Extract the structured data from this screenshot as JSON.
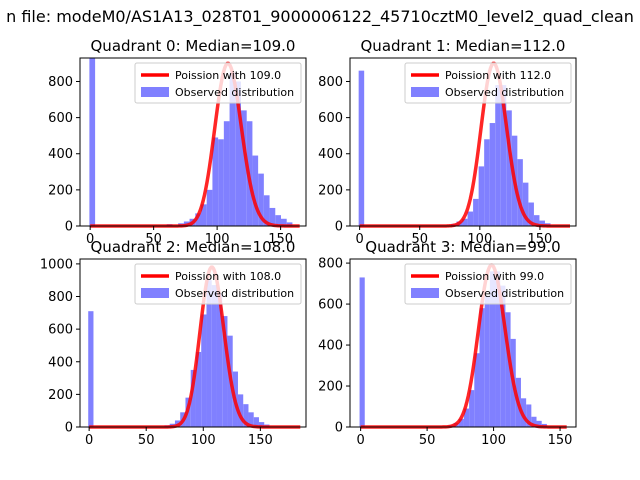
{
  "figure": {
    "title": "n file: modeM0/AS1A13_028T01_9000006122_45710cztM0_level2_quad_clean"
  },
  "colors": {
    "hist": "#8080ff",
    "curve": "#ff0000",
    "axes": "#000000"
  },
  "chart_data": [
    {
      "type": "bar",
      "title": "Quadrant 0: Median=109.0",
      "xlim": [
        -8,
        170
      ],
      "ylim": [
        0,
        930
      ],
      "xticks": [
        0,
        50,
        100,
        150
      ],
      "yticks": [
        0,
        200,
        400,
        600,
        800
      ],
      "legend": {
        "placement": "top-right",
        "entries": [
          "Poission with 109.0",
          "Observed distribution"
        ]
      },
      "series": [
        {
          "name": "Observed distribution",
          "kind": "histogram",
          "bin_width": 4.5,
          "bins": [
            {
              "x": -0.6,
              "y": 930
            },
            {
              "x": 60.3,
              "y": 10
            },
            {
              "x": 69.3,
              "y": 15
            },
            {
              "x": 73.8,
              "y": 25
            },
            {
              "x": 78.3,
              "y": 40
            },
            {
              "x": 82.8,
              "y": 70
            },
            {
              "x": 87.3,
              "y": 120
            },
            {
              "x": 91.8,
              "y": 200
            },
            {
              "x": 96.3,
              "y": 490
            },
            {
              "x": 100.8,
              "y": 480
            },
            {
              "x": 105.3,
              "y": 580
            },
            {
              "x": 109.8,
              "y": 850
            },
            {
              "x": 114.3,
              "y": 800
            },
            {
              "x": 118.8,
              "y": 640
            },
            {
              "x": 123.3,
              "y": 580
            },
            {
              "x": 127.8,
              "y": 390
            },
            {
              "x": 132.3,
              "y": 290
            },
            {
              "x": 136.8,
              "y": 170
            },
            {
              "x": 141.3,
              "y": 100
            },
            {
              "x": 145.8,
              "y": 60
            },
            {
              "x": 150.3,
              "y": 40
            },
            {
              "x": 154.8,
              "y": 20
            }
          ]
        },
        {
          "name": "Poission with 109.0",
          "kind": "poisson",
          "lambda": 109.0,
          "peak": 900,
          "x_range": [
            0,
            165
          ]
        }
      ]
    },
    {
      "type": "bar",
      "title": "Quadrant 1: Median=112.0",
      "xlim": [
        -8,
        180
      ],
      "ylim": [
        0,
        930
      ],
      "xticks": [
        0,
        50,
        100,
        150
      ],
      "yticks": [
        0,
        200,
        400,
        600,
        800
      ],
      "legend": {
        "placement": "top-right",
        "entries": [
          "Poission with 112.0",
          "Observed distribution"
        ]
      },
      "series": [
        {
          "name": "Observed distribution",
          "kind": "histogram",
          "bin_width": 4.6,
          "bins": [
            {
              "x": -0.8,
              "y": 860
            },
            {
              "x": 76.0,
              "y": 12
            },
            {
              "x": 80.6,
              "y": 25
            },
            {
              "x": 85.2,
              "y": 40
            },
            {
              "x": 89.8,
              "y": 80
            },
            {
              "x": 94.4,
              "y": 150
            },
            {
              "x": 99.0,
              "y": 330
            },
            {
              "x": 103.6,
              "y": 480
            },
            {
              "x": 108.2,
              "y": 570
            },
            {
              "x": 112.8,
              "y": 780
            },
            {
              "x": 117.4,
              "y": 780
            },
            {
              "x": 122.0,
              "y": 640
            },
            {
              "x": 126.6,
              "y": 500
            },
            {
              "x": 131.2,
              "y": 370
            },
            {
              "x": 135.8,
              "y": 240
            },
            {
              "x": 140.4,
              "y": 130
            },
            {
              "x": 145.0,
              "y": 60
            },
            {
              "x": 149.6,
              "y": 30
            },
            {
              "x": 154.2,
              "y": 15
            }
          ]
        },
        {
          "name": "Poission with 112.0",
          "kind": "poisson",
          "lambda": 112.0,
          "peak": 900,
          "x_range": [
            0,
            175
          ]
        }
      ]
    },
    {
      "type": "bar",
      "title": "Quadrant 2: Median=108.0",
      "xlim": [
        -8,
        190
      ],
      "ylim": [
        0,
        1030
      ],
      "xticks": [
        0,
        50,
        100,
        150
      ],
      "yticks": [
        0,
        200,
        400,
        600,
        800,
        1000
      ],
      "legend": {
        "placement": "top-right",
        "entries": [
          "Poission with 108.0",
          "Observed distribution"
        ]
      },
      "series": [
        {
          "name": "Observed distribution",
          "kind": "histogram",
          "bin_width": 4.6,
          "bins": [
            {
              "x": -0.8,
              "y": 710
            },
            {
              "x": 66.0,
              "y": 10
            },
            {
              "x": 70.6,
              "y": 20
            },
            {
              "x": 75.2,
              "y": 40
            },
            {
              "x": 79.8,
              "y": 90
            },
            {
              "x": 84.4,
              "y": 180
            },
            {
              "x": 89.0,
              "y": 350
            },
            {
              "x": 93.6,
              "y": 460
            },
            {
              "x": 98.2,
              "y": 690
            },
            {
              "x": 102.8,
              "y": 900
            },
            {
              "x": 107.4,
              "y": 870
            },
            {
              "x": 112.0,
              "y": 820
            },
            {
              "x": 116.6,
              "y": 680
            },
            {
              "x": 121.2,
              "y": 560
            },
            {
              "x": 125.8,
              "y": 340
            },
            {
              "x": 130.4,
              "y": 200
            },
            {
              "x": 135.0,
              "y": 140
            },
            {
              "x": 139.6,
              "y": 90
            },
            {
              "x": 144.2,
              "y": 60
            },
            {
              "x": 148.8,
              "y": 30
            },
            {
              "x": 153.4,
              "y": 15
            }
          ]
        },
        {
          "name": "Poission with 108.0",
          "kind": "poisson",
          "lambda": 108.0,
          "peak": 980,
          "x_range": [
            0,
            185
          ]
        }
      ]
    },
    {
      "type": "bar",
      "title": "Quadrant 3: Median=99.0",
      "xlim": [
        -8,
        162
      ],
      "ylim": [
        0,
        820
      ],
      "xticks": [
        0,
        50,
        100,
        150
      ],
      "yticks": [
        0,
        200,
        400,
        600,
        800
      ],
      "legend": {
        "placement": "top-right",
        "entries": [
          "Poission with 99.0",
          "Observed distribution"
        ]
      },
      "series": [
        {
          "name": "Observed distribution",
          "kind": "histogram",
          "bin_width": 3.9,
          "bins": [
            {
              "x": -0.8,
              "y": 730
            },
            {
              "x": 66.0,
              "y": 10
            },
            {
              "x": 69.9,
              "y": 20
            },
            {
              "x": 73.8,
              "y": 40
            },
            {
              "x": 77.7,
              "y": 90
            },
            {
              "x": 81.6,
              "y": 180
            },
            {
              "x": 85.5,
              "y": 360
            },
            {
              "x": 89.4,
              "y": 580
            },
            {
              "x": 93.3,
              "y": 640
            },
            {
              "x": 97.2,
              "y": 760
            },
            {
              "x": 101.1,
              "y": 760
            },
            {
              "x": 105.0,
              "y": 690
            },
            {
              "x": 108.9,
              "y": 560
            },
            {
              "x": 112.8,
              "y": 430
            },
            {
              "x": 116.7,
              "y": 240
            },
            {
              "x": 120.6,
              "y": 140
            },
            {
              "x": 124.5,
              "y": 110
            },
            {
              "x": 128.4,
              "y": 50
            },
            {
              "x": 132.3,
              "y": 30
            },
            {
              "x": 136.2,
              "y": 15
            }
          ]
        },
        {
          "name": "Poission with 99.0",
          "kind": "poisson",
          "lambda": 99.0,
          "peak": 790,
          "x_range": [
            0,
            155
          ]
        }
      ]
    }
  ]
}
